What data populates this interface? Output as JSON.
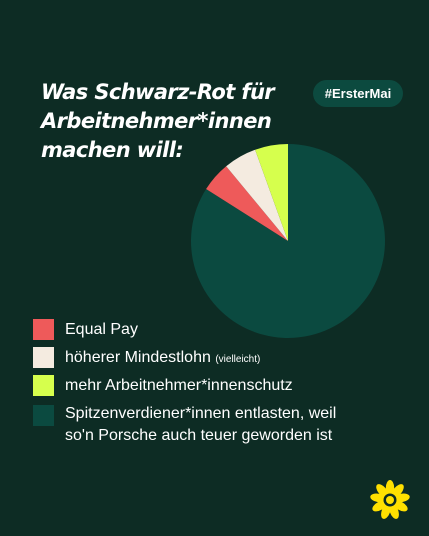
{
  "title_lines": [
    "Was Schwarz-Rot für",
    "Arbeitnehmer*innen",
    "machen will:"
  ],
  "hashtag": "#ErsterMai",
  "chart_data": {
    "type": "pie",
    "slices": [
      {
        "label": "Spitzenverdiener*innen entlasten, weil so'n Porsche auch teuer geworden ist",
        "value": 84,
        "color": "#0b4a40"
      },
      {
        "label": "Equal Pay",
        "value": 5,
        "color": "#ee5a5a"
      },
      {
        "label": "höherer Mindestlohn",
        "note": "(vielleicht)",
        "value": 5.5,
        "color": "#f4ebe0"
      },
      {
        "label": "mehr Arbeitnehmer*innenschutz",
        "value": 5.5,
        "color": "#d6ff4d"
      }
    ]
  },
  "legend": [
    {
      "label": "Equal Pay",
      "color": "#ee5a5a"
    },
    {
      "label": "höherer Mindestlohn",
      "note": "(vielleicht)",
      "color": "#f4ebe0"
    },
    {
      "label": "mehr Arbeitnehmer*innenschutz",
      "color": "#d6ff4d"
    },
    {
      "label_line1": "Spitzenverdiener*innen entlasten, weil",
      "label_line2": "so'n Porsche auch teuer geworden ist",
      "color": "#0b4a40"
    }
  ],
  "logo": "sunflower-icon"
}
